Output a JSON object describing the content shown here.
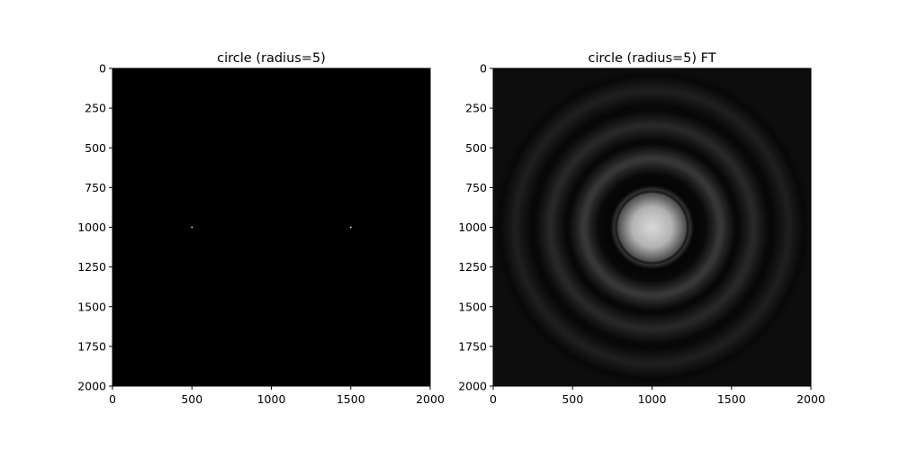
{
  "chart_data": [
    {
      "type": "heatmap",
      "title": "circle (radius=5)",
      "xlabel": "",
      "ylabel": "",
      "xlim": [
        0,
        2000
      ],
      "ylim": [
        2000,
        0
      ],
      "x_ticks": [
        0,
        500,
        1000,
        1500,
        2000
      ],
      "y_ticks": [
        0,
        250,
        500,
        750,
        1000,
        1250,
        1500,
        1750,
        2000
      ],
      "grid": false,
      "colormap": "gray",
      "background": "#000000",
      "points": [
        {
          "x": 500,
          "y": 1000,
          "radius": 5,
          "color": "#ffffff"
        },
        {
          "x": 1500,
          "y": 1000,
          "radius": 5,
          "color": "#ffffff"
        }
      ]
    },
    {
      "type": "heatmap",
      "title": "circle (radius=5) FT",
      "xlabel": "",
      "ylabel": "",
      "xlim": [
        0,
        2000
      ],
      "ylim": [
        2000,
        0
      ],
      "x_ticks": [
        0,
        500,
        1000,
        1500,
        2000
      ],
      "y_ticks": [
        0,
        250,
        500,
        750,
        1000,
        1250,
        1500,
        1750,
        2000
      ],
      "grid": false,
      "colormap": "gray",
      "center": [
        1000,
        1000
      ],
      "central_disk_radius": 230,
      "central_intensity": 0.85,
      "rings": [
        {
          "radius": 430,
          "intensity": 0.22
        },
        {
          "radius": 640,
          "intensity": 0.16
        },
        {
          "radius": 860,
          "intensity": 0.12
        }
      ]
    }
  ]
}
